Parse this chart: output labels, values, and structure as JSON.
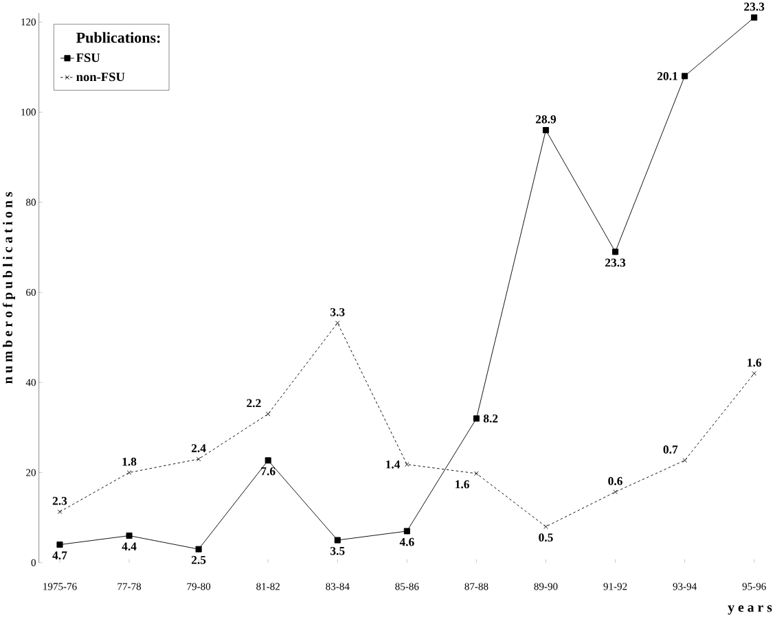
{
  "chart_data": {
    "type": "line",
    "xlabel": "y e a r s",
    "ylabel": "n u m b e r   o f   p u b l i c a t i o n s",
    "legend_title": "Publications:",
    "categories": [
      "1975-76",
      "77-78",
      "79-80",
      "81-82",
      "83-84",
      "85-86",
      "87-88",
      "89-90",
      "91-92",
      "93-94",
      "95-96"
    ],
    "series": [
      {
        "name": "FSU",
        "color": "#000000",
        "marker": "square",
        "line_style": "solid",
        "values": [
          4,
          6,
          3,
          22.7,
          5,
          7,
          32,
          96,
          69,
          108,
          121
        ]
      },
      {
        "name": "non-FSU",
        "color": "#000000",
        "marker": "cross",
        "line_style": "dashed",
        "values": [
          11.3,
          20,
          23,
          33,
          53.2,
          21.8,
          19.8,
          8,
          15.7,
          22.7,
          42
        ]
      }
    ],
    "annotations": [
      {
        "text": "4.7",
        "x": "1975-76",
        "y": 4
      },
      {
        "text": "4.4",
        "x": "77-78",
        "y": 6
      },
      {
        "text": "2.5",
        "x": "79-80",
        "y": 3
      },
      {
        "text": "7.6",
        "x": "81-82",
        "y": 22.7
      },
      {
        "text": "3.5",
        "x": "83-84",
        "y": 5
      },
      {
        "text": "4.6",
        "x": "85-86",
        "y": 7
      },
      {
        "text": "8.2",
        "x": "87-88",
        "y": 32
      },
      {
        "text": "28.9",
        "x": "89-90",
        "y": 96
      },
      {
        "text": "23.3",
        "x": "91-92",
        "y": 69
      },
      {
        "text": "20.1",
        "x": "93-94",
        "y": 108
      },
      {
        "text": "23.3",
        "x": "95-96",
        "y": 121
      },
      {
        "text": "2.3",
        "x": "1975-76",
        "y": 11.3
      },
      {
        "text": "1.8",
        "x": "77-78",
        "y": 20
      },
      {
        "text": "2.4",
        "x": "79-80",
        "y": 23
      },
      {
        "text": "2.2",
        "x": "81-82",
        "y": 33
      },
      {
        "text": "3.3",
        "x": "83-84",
        "y": 53.2
      },
      {
        "text": "1.4",
        "x": "85-86",
        "y": 21.8
      },
      {
        "text": "1.6",
        "x": "87-88",
        "y": 19.8
      },
      {
        "text": "0.5",
        "x": "89-90",
        "y": 8
      },
      {
        "text": "0.6",
        "x": "91-92",
        "y": 15.7
      },
      {
        "text": "0.7",
        "x": "93-94",
        "y": 22.7
      },
      {
        "text": "1.6",
        "x": "95-96",
        "y": 42
      }
    ],
    "ylim": [
      0,
      122
    ],
    "yticks": [
      0,
      20,
      40,
      60,
      80,
      100,
      120
    ],
    "grid": false,
    "legend": "top left"
  }
}
